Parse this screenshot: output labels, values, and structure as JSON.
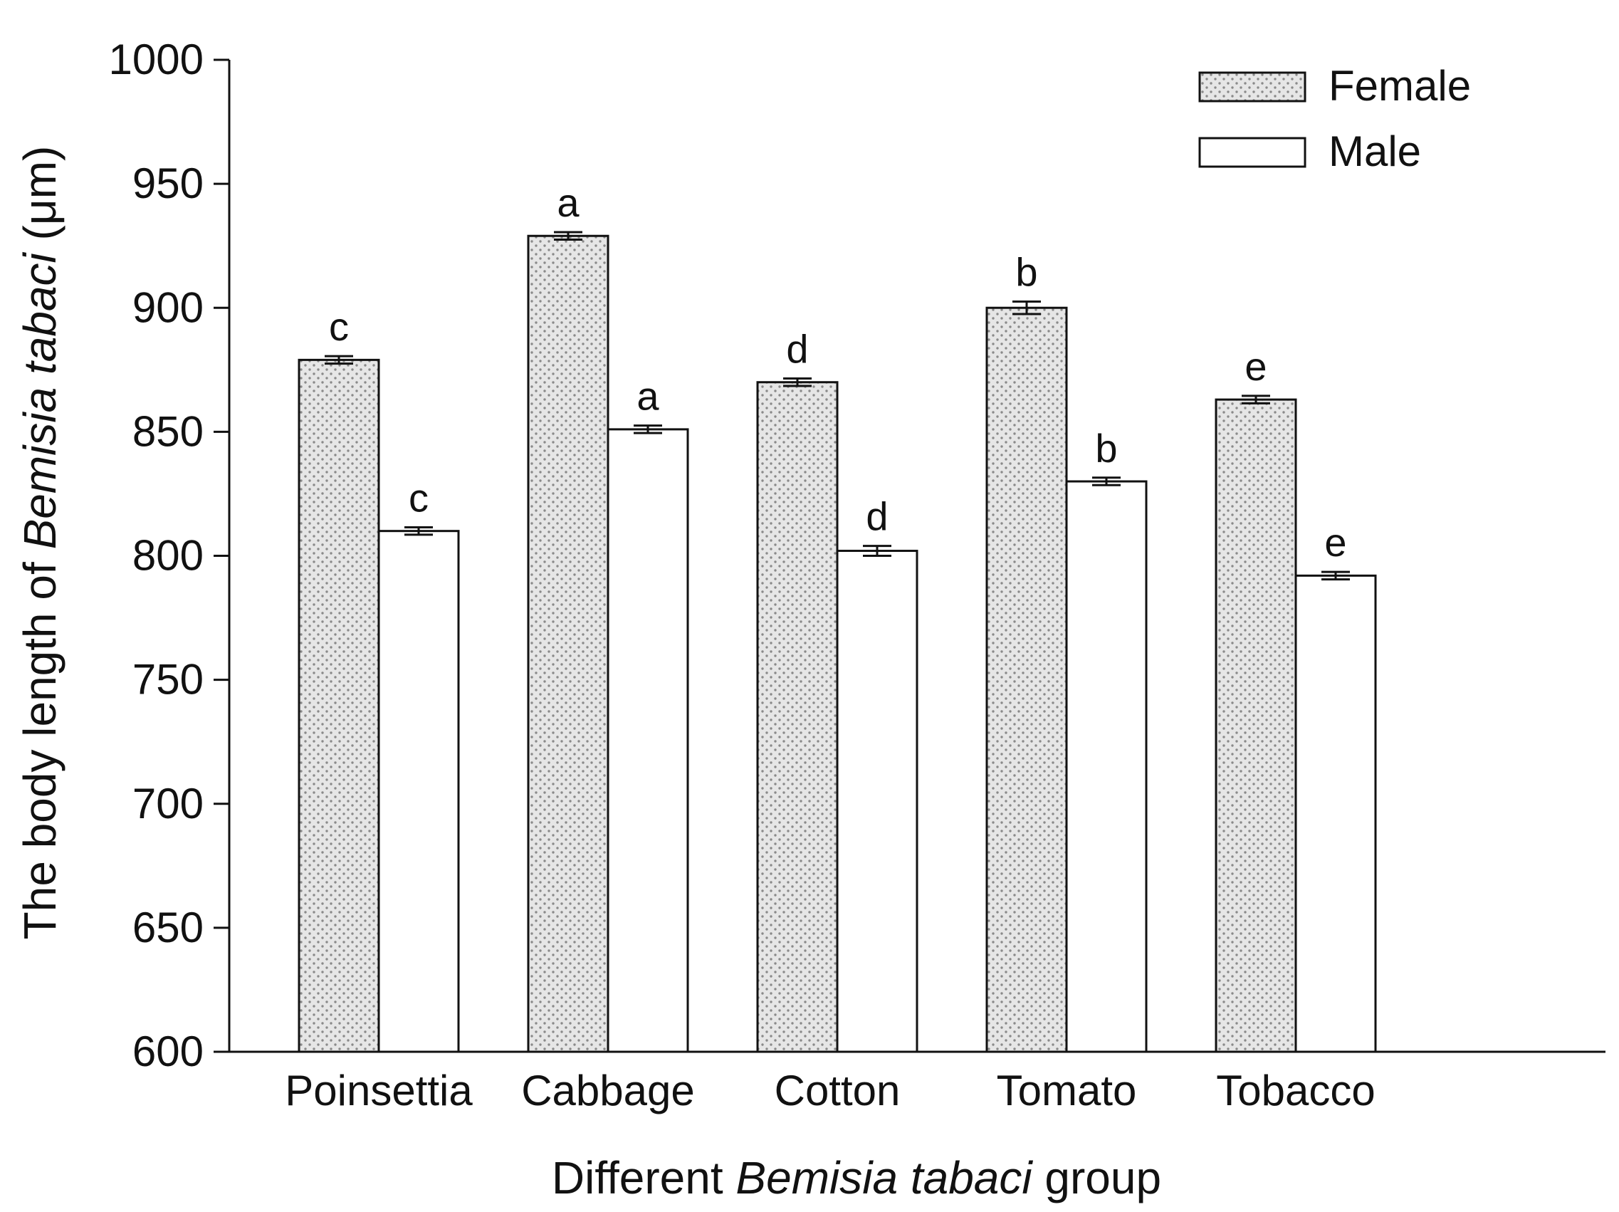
{
  "chart_data": {
    "type": "bar",
    "categories": [
      "Poinsettia",
      "Cabbage",
      "Cotton",
      "Tomato",
      "Tobacco"
    ],
    "series": [
      {
        "name": "Female",
        "values": [
          879,
          929,
          870,
          900,
          863
        ],
        "errors": [
          1.5,
          1.5,
          1.5,
          2.5,
          1.5
        ],
        "letters": [
          "c",
          "a",
          "d",
          "b",
          "e"
        ]
      },
      {
        "name": "Male",
        "values": [
          810,
          851,
          802,
          830,
          792
        ],
        "errors": [
          1.5,
          1.5,
          2.0,
          1.5,
          1.5
        ],
        "letters": [
          "c",
          "a",
          "d",
          "b",
          "e"
        ]
      }
    ],
    "ylim": [
      600,
      1000
    ],
    "yticks": [
      600,
      650,
      700,
      750,
      800,
      850,
      900,
      950,
      1000
    ],
    "xlabel": {
      "pre": "Different ",
      "italic": "Bemisia tabaci",
      "post": " group"
    },
    "ylabel": {
      "pre": "The body length of ",
      "italic": "Bemisia tabaci",
      "post": " (μm)"
    },
    "legend_position": "top-right",
    "grid": false,
    "colors": {
      "female_fill": "#e6e6e6",
      "female_dots": "#8a8a8a",
      "male_fill": "#ffffff",
      "stroke": "#111111"
    }
  }
}
